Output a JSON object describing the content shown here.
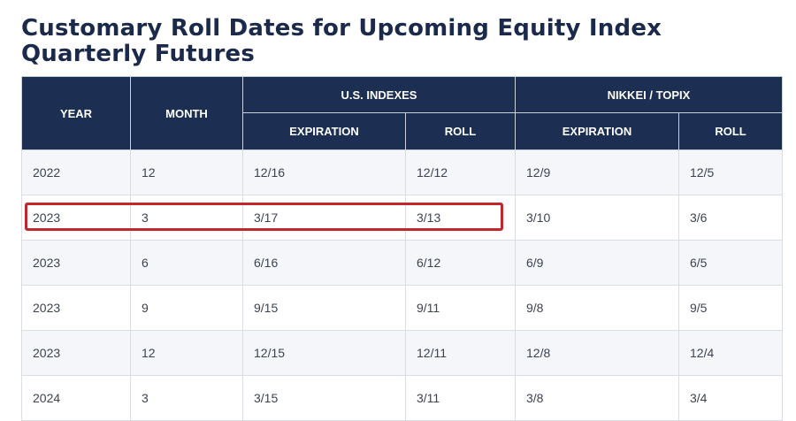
{
  "page": {
    "title": "Customary Roll Dates for Upcoming Equity Index Quarterly Futures"
  },
  "table": {
    "headers": {
      "year": "YEAR",
      "month": "MONTH",
      "us_indexes": "U.S. INDEXES",
      "nikkei_topix": "NIKKEI / TOPIX",
      "us_expiration": "EXPIRATION",
      "us_roll": "ROLL",
      "nk_expiration": "EXPIRATION",
      "nk_roll": "ROLL"
    },
    "rows": [
      {
        "year": "2022",
        "month": "12",
        "us_exp": "12/16",
        "us_roll": "12/12",
        "nk_exp": "12/9",
        "nk_roll": "12/5"
      },
      {
        "year": "2023",
        "month": "3",
        "us_exp": "3/17",
        "us_roll": "3/13",
        "nk_exp": "3/10",
        "nk_roll": "3/6"
      },
      {
        "year": "2023",
        "month": "6",
        "us_exp": "6/16",
        "us_roll": "6/12",
        "nk_exp": "6/9",
        "nk_roll": "6/5"
      },
      {
        "year": "2023",
        "month": "9",
        "us_exp": "9/15",
        "us_roll": "9/11",
        "nk_exp": "9/8",
        "nk_roll": "9/5"
      },
      {
        "year": "2023",
        "month": "12",
        "us_exp": "12/15",
        "us_roll": "12/11",
        "nk_exp": "12/8",
        "nk_roll": "12/4"
      },
      {
        "year": "2024",
        "month": "3",
        "us_exp": "3/15",
        "us_roll": "3/11",
        "nk_exp": "3/8",
        "nk_roll": "3/4"
      }
    ],
    "highlighted_row": 1
  },
  "colors": {
    "header_bg": "#1c2f52",
    "title": "#1b2a4a",
    "highlight_border": "#c0282e",
    "stripe": "#f4f6f9"
  }
}
